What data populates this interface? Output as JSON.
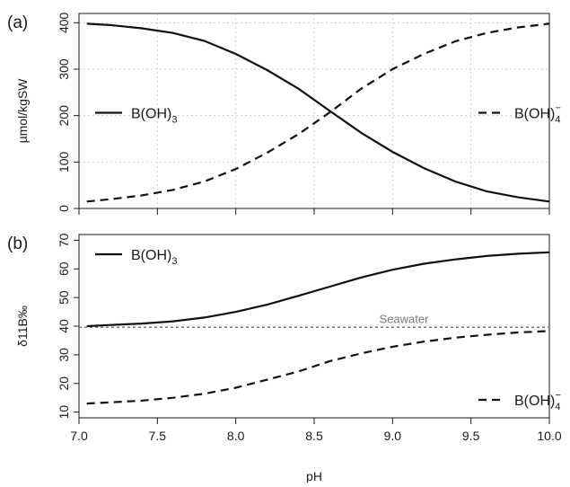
{
  "chart_data": [
    {
      "type": "line",
      "panel_label": "(a)",
      "ylabel": "µmol/kgSW",
      "xlim": [
        7.0,
        10.0
      ],
      "ylim": [
        0,
        420
      ],
      "yticks": [
        0,
        100,
        200,
        300,
        400
      ],
      "xticks": [
        7.0,
        7.5,
        8.0,
        8.5,
        9.0,
        9.5,
        10.0
      ],
      "grid": true,
      "series": [
        {
          "name": "B(OH)",
          "name_sub": "3",
          "name_sup": "",
          "style": "solid",
          "legend_position": "middle-left",
          "x": [
            7.05,
            7.2,
            7.4,
            7.6,
            7.8,
            8.0,
            8.2,
            8.4,
            8.6,
            8.8,
            9.0,
            9.2,
            9.4,
            9.6,
            9.8,
            10.0
          ],
          "y": [
            398,
            395,
            388,
            378,
            361,
            333,
            298,
            258,
            210,
            163,
            122,
            87,
            58,
            37,
            24,
            15
          ]
        },
        {
          "name": "B(OH)",
          "name_sub": "4",
          "name_sup": "−",
          "style": "dashed",
          "legend_position": "middle-right",
          "x": [
            7.05,
            7.2,
            7.4,
            7.6,
            7.8,
            8.0,
            8.2,
            8.4,
            8.6,
            8.8,
            9.0,
            9.2,
            9.4,
            9.6,
            9.8,
            10.0
          ],
          "y": [
            15,
            20,
            28,
            40,
            58,
            85,
            120,
            160,
            207,
            258,
            300,
            333,
            360,
            378,
            390,
            398
          ]
        }
      ]
    },
    {
      "type": "line",
      "panel_label": "(b)",
      "ylabel": "δ11B‰",
      "xlabel": "pH",
      "xlim": [
        7.0,
        10.0
      ],
      "ylim": [
        8,
        72
      ],
      "yticks": [
        10,
        20,
        30,
        40,
        50,
        60,
        70
      ],
      "xticks": [
        7.0,
        7.5,
        8.0,
        8.5,
        9.0,
        9.5,
        10.0
      ],
      "xticklabels": [
        "7.0",
        "7.5",
        "8.0",
        "8.5",
        "9.0",
        "9.5",
        "10.0"
      ],
      "grid": false,
      "reference_line": {
        "y": 39.6,
        "label": "Seawater"
      },
      "series": [
        {
          "name": "B(OH)",
          "name_sub": "3",
          "name_sup": "",
          "style": "solid",
          "legend_position": "top-left",
          "x": [
            7.05,
            7.2,
            7.4,
            7.6,
            7.8,
            8.0,
            8.2,
            8.4,
            8.6,
            8.8,
            9.0,
            9.2,
            9.4,
            9.6,
            9.8,
            10.0
          ],
          "y": [
            40.0,
            40.4,
            40.9,
            41.7,
            43.0,
            45.0,
            47.5,
            50.6,
            53.8,
            57.0,
            59.7,
            61.8,
            63.3,
            64.5,
            65.3,
            65.8
          ]
        },
        {
          "name": "B(OH)",
          "name_sub": "4",
          "name_sup": "−",
          "style": "dashed",
          "legend_position": "bottom-right",
          "x": [
            7.05,
            7.2,
            7.4,
            7.6,
            7.8,
            8.0,
            8.2,
            8.4,
            8.6,
            8.8,
            9.0,
            9.2,
            9.4,
            9.6,
            9.8,
            10.0
          ],
          "y": [
            13.0,
            13.4,
            14.0,
            15.0,
            16.4,
            18.5,
            21.3,
            24.2,
            27.8,
            30.5,
            32.8,
            34.6,
            36.0,
            37.0,
            37.8,
            38.3
          ]
        }
      ]
    }
  ]
}
